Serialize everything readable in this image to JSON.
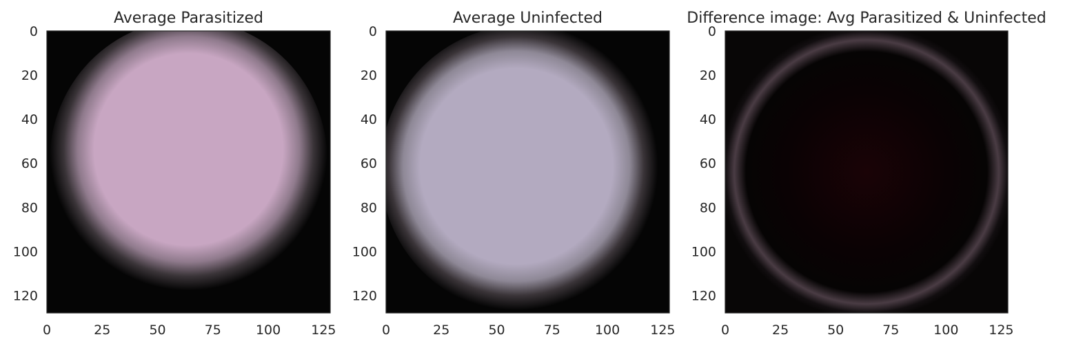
{
  "chart_data": [
    {
      "type": "image",
      "title": "Average Parasitized",
      "xlim": [
        0,
        128
      ],
      "ylim": [
        128,
        0
      ],
      "xticks": [
        0,
        25,
        50,
        75,
        100,
        125
      ],
      "yticks": [
        0,
        20,
        40,
        60,
        80,
        100,
        120
      ],
      "cell_center_color": "#c8a6c2",
      "cell_edge_color": "#8f7a8c",
      "background_color": "#050505"
    },
    {
      "type": "image",
      "title": "Average Uninfected",
      "xlim": [
        0,
        128
      ],
      "ylim": [
        128,
        0
      ],
      "xticks": [
        0,
        25,
        50,
        75,
        100,
        125
      ],
      "yticks": [
        0,
        20,
        40,
        60,
        80,
        100,
        120
      ],
      "cell_center_color": "#b3aac0",
      "cell_edge_color": "#8e8896",
      "background_color": "#050505"
    },
    {
      "type": "image",
      "title": "Difference image: Avg Parasitized & Uninfected",
      "xlim": [
        0,
        128
      ],
      "ylim": [
        128,
        0
      ],
      "xticks": [
        0,
        25,
        50,
        75,
        100,
        125
      ],
      "yticks": [
        0,
        20,
        40,
        60,
        80,
        100,
        120
      ],
      "cell_center_color": "#1a0306",
      "cell_edge_color": "#4a3c44",
      "background_color": "#080606"
    }
  ]
}
